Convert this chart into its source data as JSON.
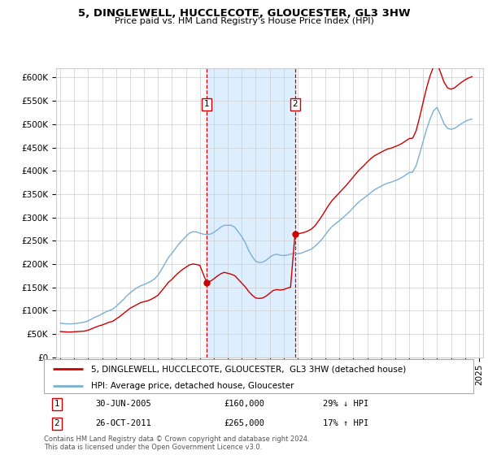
{
  "title": "5, DINGLEWELL, HUCCLECOTE, GLOUCESTER, GL3 3HW",
  "subtitle": "Price paid vs. HM Land Registry's House Price Index (HPI)",
  "ylim": [
    0,
    620000
  ],
  "yticks": [
    0,
    50000,
    100000,
    150000,
    200000,
    250000,
    300000,
    350000,
    400000,
    450000,
    500000,
    550000,
    600000
  ],
  "ytick_labels": [
    "£0",
    "£50K",
    "£100K",
    "£150K",
    "£200K",
    "£250K",
    "£300K",
    "£350K",
    "£400K",
    "£450K",
    "£500K",
    "£550K",
    "£600K"
  ],
  "xlim_start": 1994.7,
  "xlim_end": 2025.3,
  "xtick_years": [
    1995,
    1996,
    1997,
    1998,
    1999,
    2000,
    2001,
    2002,
    2003,
    2004,
    2005,
    2006,
    2007,
    2008,
    2009,
    2010,
    2011,
    2012,
    2013,
    2014,
    2015,
    2016,
    2017,
    2018,
    2019,
    2020,
    2021,
    2022,
    2023,
    2024,
    2025
  ],
  "transaction1_x": 2005.49,
  "transaction1_y": 160000,
  "transaction2_x": 2011.82,
  "transaction2_y": 265000,
  "transaction1_label": "30-JUN-2005",
  "transaction2_label": "26-OCT-2011",
  "transaction1_price": "£160,000",
  "transaction2_price": "£265,000",
  "transaction1_hpi": "29% ↓ HPI",
  "transaction2_hpi": "17% ↑ HPI",
  "red_line_color": "#cc0000",
  "blue_line_color": "#7bafd4",
  "vline_color": "#cc0000",
  "highlight_color": "#ddeeff",
  "grid_color": "#cccccc",
  "legend1": "5, DINGLEWELL, HUCCLECOTE, GLOUCESTER,  GL3 3HW (detached house)",
  "legend2": "HPI: Average price, detached house, Gloucester",
  "footer": "Contains HM Land Registry data © Crown copyright and database right 2024.\nThis data is licensed under the Open Government Licence v3.0.",
  "hpi_data_x": [
    1995.0,
    1995.25,
    1995.5,
    1995.75,
    1996.0,
    1996.25,
    1996.5,
    1996.75,
    1997.0,
    1997.25,
    1997.5,
    1997.75,
    1998.0,
    1998.25,
    1998.5,
    1998.75,
    1999.0,
    1999.25,
    1999.5,
    1999.75,
    2000.0,
    2000.25,
    2000.5,
    2000.75,
    2001.0,
    2001.25,
    2001.5,
    2001.75,
    2002.0,
    2002.25,
    2002.5,
    2002.75,
    2003.0,
    2003.25,
    2003.5,
    2003.75,
    2004.0,
    2004.25,
    2004.5,
    2004.75,
    2005.0,
    2005.25,
    2005.5,
    2005.75,
    2006.0,
    2006.25,
    2006.5,
    2006.75,
    2007.0,
    2007.25,
    2007.5,
    2007.75,
    2008.0,
    2008.25,
    2008.5,
    2008.75,
    2009.0,
    2009.25,
    2009.5,
    2009.75,
    2010.0,
    2010.25,
    2010.5,
    2010.75,
    2011.0,
    2011.25,
    2011.5,
    2011.75,
    2012.0,
    2012.25,
    2012.5,
    2012.75,
    2013.0,
    2013.25,
    2013.5,
    2013.75,
    2014.0,
    2014.25,
    2014.5,
    2014.75,
    2015.0,
    2015.25,
    2015.5,
    2015.75,
    2016.0,
    2016.25,
    2016.5,
    2016.75,
    2017.0,
    2017.25,
    2017.5,
    2017.75,
    2018.0,
    2018.25,
    2018.5,
    2018.75,
    2019.0,
    2019.25,
    2019.5,
    2019.75,
    2020.0,
    2020.25,
    2020.5,
    2020.75,
    2021.0,
    2021.25,
    2021.5,
    2021.75,
    2022.0,
    2022.25,
    2022.5,
    2022.75,
    2023.0,
    2023.25,
    2023.5,
    2023.75,
    2024.0,
    2024.25,
    2024.5
  ],
  "hpi_data_y": [
    73000,
    72000,
    71500,
    71500,
    72000,
    73000,
    74000,
    75500,
    78000,
    82000,
    86000,
    89000,
    93000,
    97000,
    100000,
    103000,
    109000,
    116000,
    123000,
    131000,
    138000,
    144000,
    149000,
    153000,
    156000,
    159000,
    163000,
    168000,
    176000,
    188000,
    201000,
    214000,
    223000,
    233000,
    243000,
    251000,
    259000,
    266000,
    269000,
    269000,
    266000,
    264000,
    263000,
    264000,
    268000,
    273000,
    279000,
    283000,
    283000,
    283000,
    279000,
    269000,
    259000,
    246000,
    229000,
    216000,
    206000,
    203000,
    204000,
    208000,
    214000,
    219000,
    221000,
    219000,
    218000,
    219000,
    221000,
    223000,
    222000,
    223000,
    226000,
    229000,
    232000,
    238000,
    245000,
    253000,
    263000,
    273000,
    281000,
    287000,
    293000,
    299000,
    306000,
    313000,
    321000,
    329000,
    336000,
    341000,
    347000,
    353000,
    359000,
    363000,
    367000,
    371000,
    374000,
    376000,
    379000,
    382000,
    386000,
    391000,
    396000,
    397000,
    411000,
    436000,
    463000,
    489000,
    511000,
    529000,
    536000,
    519000,
    501000,
    491000,
    489000,
    491000,
    496000,
    501000,
    506000,
    509000,
    511000
  ],
  "red_data_x": [
    1995.0,
    1995.25,
    1995.5,
    1995.75,
    1996.0,
    1996.25,
    1996.5,
    1996.75,
    1997.0,
    1997.25,
    1997.5,
    1997.75,
    1998.0,
    1998.25,
    1998.5,
    1998.75,
    1999.0,
    1999.25,
    1999.5,
    1999.75,
    2000.0,
    2000.25,
    2000.5,
    2000.75,
    2001.0,
    2001.25,
    2001.5,
    2001.75,
    2002.0,
    2002.25,
    2002.5,
    2002.75,
    2003.0,
    2003.25,
    2003.5,
    2003.75,
    2004.0,
    2004.25,
    2004.5,
    2004.75,
    2005.0,
    2005.49,
    2005.75,
    2006.0,
    2006.25,
    2006.5,
    2006.75,
    2007.0,
    2007.25,
    2007.5,
    2007.75,
    2008.0,
    2008.25,
    2008.5,
    2008.75,
    2009.0,
    2009.25,
    2009.5,
    2009.75,
    2010.0,
    2010.25,
    2010.5,
    2010.75,
    2011.0,
    2011.25,
    2011.5,
    2011.82,
    2012.0,
    2012.25,
    2012.5,
    2012.75,
    2013.0,
    2013.25,
    2013.5,
    2013.75,
    2014.0,
    2014.25,
    2014.5,
    2014.75,
    2015.0,
    2015.25,
    2015.5,
    2015.75,
    2016.0,
    2016.25,
    2016.5,
    2016.75,
    2017.0,
    2017.25,
    2017.5,
    2017.75,
    2018.0,
    2018.25,
    2018.5,
    2018.75,
    2019.0,
    2019.25,
    2019.5,
    2019.75,
    2020.0,
    2020.25,
    2020.5,
    2020.75,
    2021.0,
    2021.25,
    2021.5,
    2021.75,
    2022.0,
    2022.25,
    2022.5,
    2022.75,
    2023.0,
    2023.25,
    2023.5,
    2023.75,
    2024.0,
    2024.25,
    2024.5
  ],
  "red_data_y": [
    55000,
    54500,
    54000,
    54000,
    54500,
    55000,
    55500,
    56000,
    58000,
    61000,
    64000,
    67000,
    69000,
    72000,
    75000,
    77000,
    82000,
    87000,
    93000,
    99000,
    105000,
    109000,
    113000,
    117000,
    119000,
    121000,
    124000,
    128000,
    133000,
    142000,
    151000,
    161000,
    167000,
    175000,
    182000,
    188000,
    193000,
    198000,
    200000,
    199000,
    197000,
    160000,
    163000,
    168000,
    174000,
    179000,
    182000,
    180000,
    178000,
    175000,
    167000,
    159000,
    151000,
    141000,
    133000,
    127000,
    126000,
    127000,
    131000,
    137000,
    143000,
    145000,
    144000,
    145000,
    148000,
    150000,
    265000,
    265000,
    266000,
    268000,
    271000,
    275000,
    282000,
    292000,
    303000,
    315000,
    327000,
    337000,
    345000,
    353000,
    361000,
    369000,
    378000,
    387000,
    396000,
    404000,
    411000,
    419000,
    426000,
    432000,
    436000,
    440000,
    444000,
    447000,
    449000,
    452000,
    455000,
    459000,
    464000,
    469000,
    470000,
    486000,
    515000,
    547000,
    578000,
    604000,
    624000,
    630000,
    611000,
    590000,
    578000,
    575000,
    578000,
    584000,
    590000,
    595000,
    599000,
    602000
  ]
}
